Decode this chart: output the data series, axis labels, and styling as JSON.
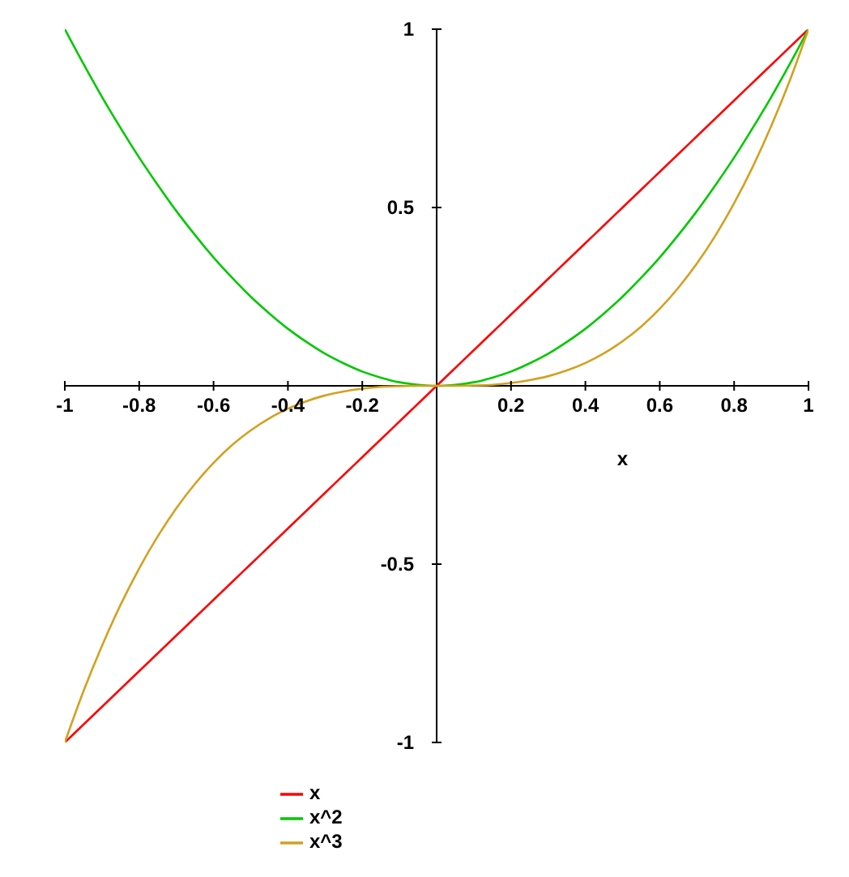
{
  "chart_data": {
    "type": "line",
    "xlabel": "x",
    "x": [
      -1,
      -0.95,
      -0.9,
      -0.85,
      -0.8,
      -0.75,
      -0.7,
      -0.65,
      -0.6,
      -0.55,
      -0.5,
      -0.45,
      -0.4,
      -0.35,
      -0.3,
      -0.25,
      -0.2,
      -0.15,
      -0.1,
      -0.05,
      0,
      0.05,
      0.1,
      0.15,
      0.2,
      0.25,
      0.3,
      0.35,
      0.4,
      0.45,
      0.5,
      0.55,
      0.6,
      0.65,
      0.7,
      0.75,
      0.8,
      0.85,
      0.9,
      0.95,
      1
    ],
    "series": [
      {
        "name": "x",
        "color": "#ff0000",
        "values": [
          -1,
          -0.95,
          -0.9,
          -0.85,
          -0.8,
          -0.75,
          -0.7,
          -0.65,
          -0.6,
          -0.55,
          -0.5,
          -0.45,
          -0.4,
          -0.35,
          -0.3,
          -0.25,
          -0.2,
          -0.15,
          -0.1,
          -0.05,
          0,
          0.05,
          0.1,
          0.15,
          0.2,
          0.25,
          0.3,
          0.35,
          0.4,
          0.45,
          0.5,
          0.55,
          0.6,
          0.65,
          0.7,
          0.75,
          0.8,
          0.85,
          0.9,
          0.95,
          1
        ]
      },
      {
        "name": "x^2",
        "color": "#00c800",
        "values": [
          1,
          0.903,
          0.81,
          0.723,
          0.64,
          0.563,
          0.49,
          0.423,
          0.36,
          0.303,
          0.25,
          0.203,
          0.16,
          0.123,
          0.09,
          0.063,
          0.04,
          0.023,
          0.01,
          0.003,
          0,
          0.003,
          0.01,
          0.023,
          0.04,
          0.063,
          0.09,
          0.123,
          0.16,
          0.203,
          0.25,
          0.303,
          0.36,
          0.423,
          0.49,
          0.563,
          0.64,
          0.723,
          0.81,
          0.903,
          1
        ]
      },
      {
        "name": "x^3",
        "color": "#d4a020",
        "values": [
          -1,
          -0.857,
          -0.729,
          -0.614,
          -0.512,
          -0.422,
          -0.343,
          -0.275,
          -0.216,
          -0.166,
          -0.125,
          -0.091,
          -0.064,
          -0.043,
          -0.027,
          -0.016,
          -0.008,
          -0.003,
          -0.001,
          0,
          0,
          0,
          0.001,
          0.003,
          0.008,
          0.016,
          0.027,
          0.043,
          0.064,
          0.091,
          0.125,
          0.166,
          0.216,
          0.275,
          0.343,
          0.422,
          0.512,
          0.614,
          0.729,
          0.857,
          1
        ]
      }
    ],
    "xlim": [
      -1,
      1
    ],
    "ylim": [
      -1,
      1
    ],
    "xticks": [
      -1,
      -0.8,
      -0.6,
      -0.4,
      -0.2,
      0.2,
      0.4,
      0.6,
      0.8,
      1
    ],
    "yticks": [
      -1,
      -0.5,
      0.5,
      1
    ],
    "grid": false,
    "legend": "bottom",
    "marker": "none",
    "line_style": "solid"
  }
}
